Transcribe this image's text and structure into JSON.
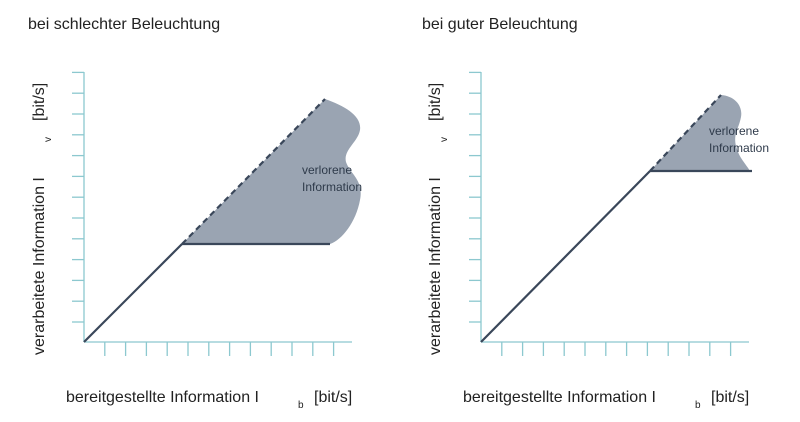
{
  "panels": [
    {
      "title": "bei schlechter Beleuchtung",
      "y_label": "verarbeitete Information I",
      "y_sub": "v",
      "y_unit": "[bit/s]",
      "x_label": "bereitgestellte Information I",
      "x_sub": "b",
      "x_unit": "[bit/s]",
      "area_label_1": "verlorene",
      "area_label_2": "Information"
    },
    {
      "title": "bei guter Beleuchtung",
      "y_label": "verarbeitete Information I",
      "y_sub": "v",
      "y_unit": "[bit/s]",
      "x_label": "bereitgestellte Information I",
      "x_sub": "b",
      "x_unit": "[bit/s]",
      "area_label_1": "verlorene",
      "area_label_2": "Information"
    }
  ],
  "colors": {
    "axis": "#8cc8cf",
    "line": "#3a475a",
    "area": "#9aa4b2"
  }
}
